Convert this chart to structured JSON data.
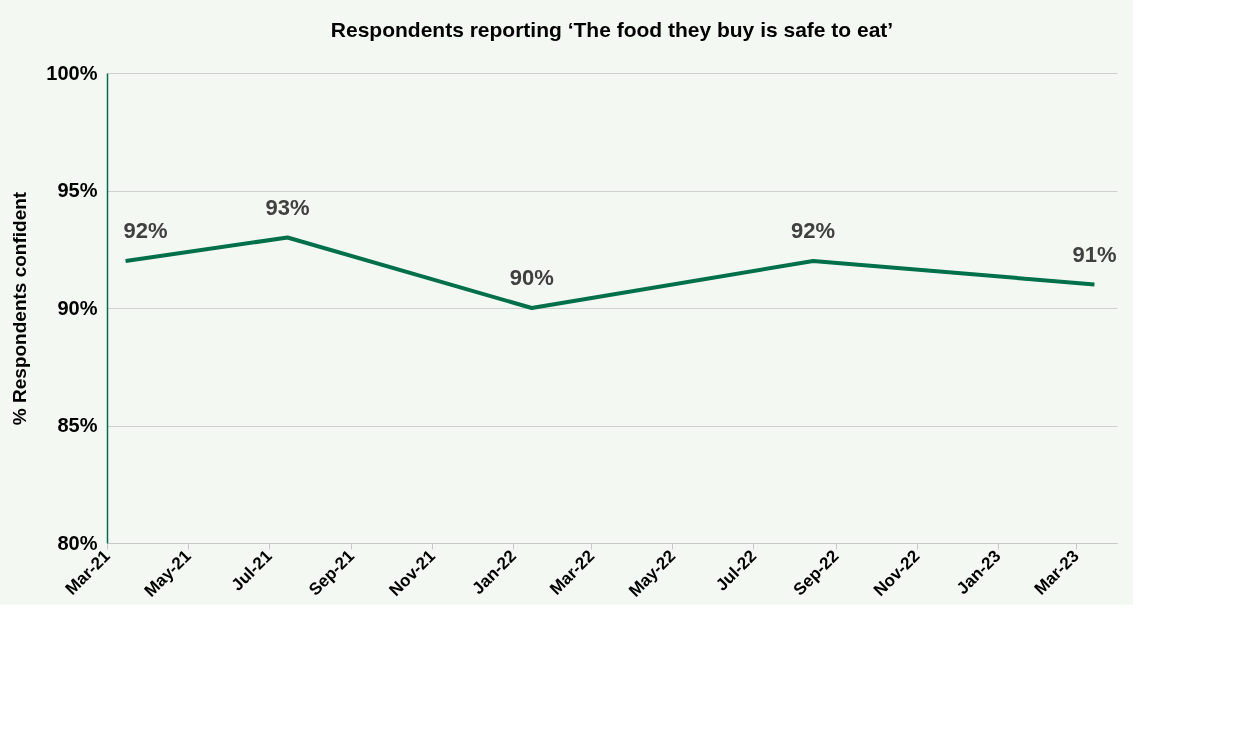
{
  "chart_data": {
    "type": "line",
    "title": "Respondents reporting ‘The food they buy is safe to eat’",
    "ylabel": "% Respondents confident",
    "x": [
      "2021-03-15",
      "2021-07-15",
      "2022-01-15",
      "2022-08-15",
      "2023-03-15"
    ],
    "series": [
      {
        "color": "#00704a",
        "values": [
          92,
          93,
          90,
          92,
          91
        ]
      }
    ],
    "value_labels": [
      "92%",
      "93%",
      "90%",
      "92%",
      "91%"
    ],
    "xlim": [
      "2021-03-01",
      "2023-04-01"
    ],
    "xticks": [
      {
        "value": "2021-03-01",
        "label": "Mar-21"
      },
      {
        "value": "2021-05-01",
        "label": "May-21"
      },
      {
        "value": "2021-07-01",
        "label": "Jul-21"
      },
      {
        "value": "2021-09-01",
        "label": "Sep-21"
      },
      {
        "value": "2021-11-01",
        "label": "Nov-21"
      },
      {
        "value": "2022-01-01",
        "label": "Jan-22"
      },
      {
        "value": "2022-03-01",
        "label": "Mar-22"
      },
      {
        "value": "2022-05-01",
        "label": "May-22"
      },
      {
        "value": "2022-07-01",
        "label": "Jul-22"
      },
      {
        "value": "2022-09-01",
        "label": "Sep-22"
      },
      {
        "value": "2022-11-01",
        "label": "Nov-22"
      },
      {
        "value": "2023-01-01",
        "label": "Jan-23"
      },
      {
        "value": "2023-03-01",
        "label": "Mar-23"
      }
    ],
    "ylim": [
      80,
      100
    ],
    "yticks": [
      {
        "value": 80,
        "label": "80%"
      },
      {
        "value": 85,
        "label": "85%"
      },
      {
        "value": 90,
        "label": "90%"
      },
      {
        "value": 95,
        "label": "95%"
      },
      {
        "value": 100,
        "label": "100%"
      }
    ],
    "grid": "y",
    "marker": "none",
    "line_style": "solid"
  }
}
